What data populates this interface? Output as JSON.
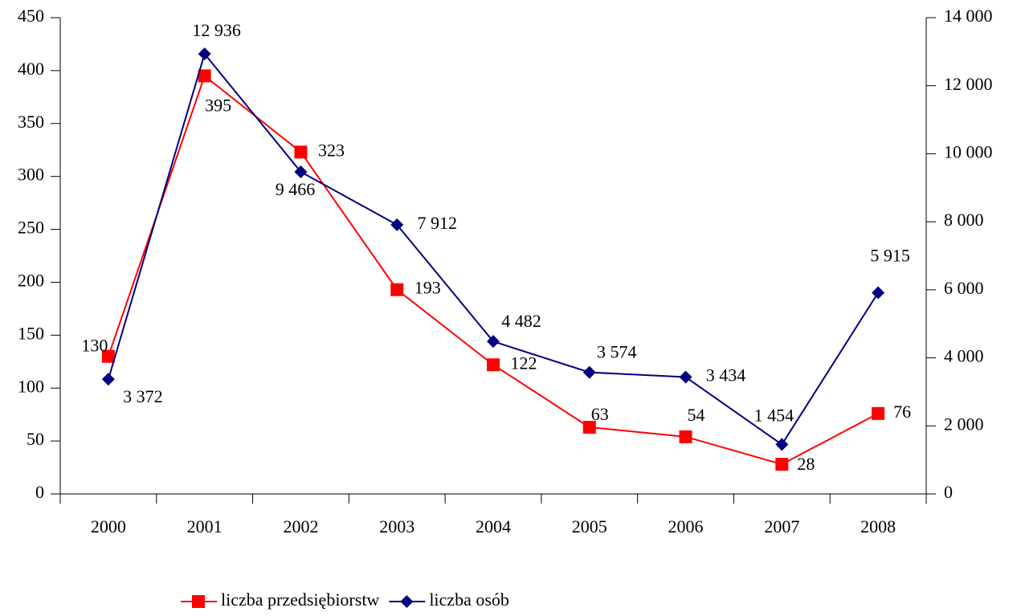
{
  "chart_data": {
    "type": "line",
    "categories": [
      "2000",
      "2001",
      "2002",
      "2003",
      "2004",
      "2005",
      "2006",
      "2007",
      "2008"
    ],
    "series": [
      {
        "name": "liczba przedsiębiorstw",
        "color": "#ff0000",
        "marker": "square",
        "axis": "y",
        "values": [
          130,
          395,
          323,
          193,
          122,
          63,
          54,
          28,
          76
        ]
      },
      {
        "name": "liczba osób",
        "color": "#000080",
        "marker": "diamond",
        "axis": "y2",
        "values": [
          3372,
          12936,
          9466,
          7912,
          4482,
          3574,
          3434,
          1454,
          5915
        ],
        "value_labels": [
          "3 372",
          "12 936",
          "9 466",
          "7 912",
          "4 482",
          "3 574",
          "3 434",
          "1 454",
          "5 915"
        ]
      }
    ],
    "ylim": [
      0,
      450
    ],
    "yticks": [
      0,
      50,
      100,
      150,
      200,
      250,
      300,
      350,
      400,
      450
    ],
    "y2lim": [
      0,
      14000
    ],
    "y2ticks": [
      0,
      {
        "value": 2000,
        "label": "2 000"
      },
      {
        "value": 4000,
        "label": "4 000"
      },
      {
        "value": 6000,
        "label": "6 000"
      },
      {
        "value": 8000,
        "label": "8 000"
      },
      {
        "value": 10000,
        "label": "10 000"
      },
      {
        "value": 12000,
        "label": "12 000"
      },
      {
        "value": 14000,
        "label": "14 000"
      }
    ],
    "grid": false,
    "legend": "bottom"
  }
}
